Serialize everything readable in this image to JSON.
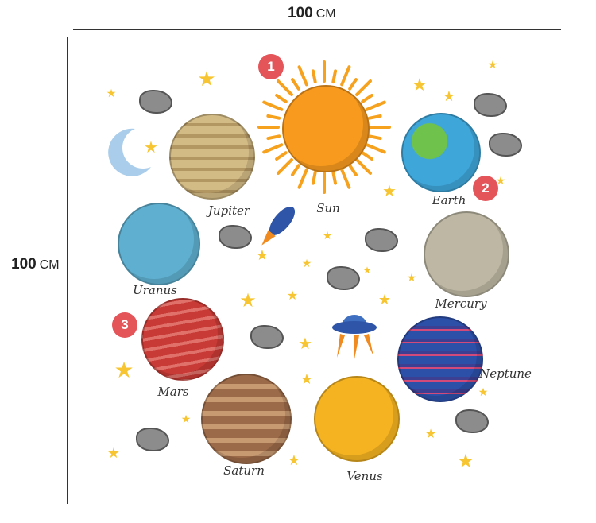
{
  "dimensions": {
    "width": {
      "value": "100",
      "unit": "CM"
    },
    "height": {
      "value": "100",
      "unit": "CM"
    }
  },
  "badges": [
    "1",
    "2",
    "3"
  ],
  "planets": [
    {
      "label": "Sun",
      "color": "#f79a1e"
    },
    {
      "label": "Earth",
      "color": "#3fa6d9"
    },
    {
      "label": "Jupiter",
      "color": "#c9b07a"
    },
    {
      "label": "Uranus",
      "color": "#5fb0d0"
    },
    {
      "label": "Mercury",
      "color": "#bdb7a3"
    },
    {
      "label": "Mars",
      "color": "#c83a35"
    },
    {
      "label": "Neptune",
      "color": "#2c4fa8"
    },
    {
      "label": "Saturn",
      "color": "#9b6a48"
    },
    {
      "label": "Venus",
      "color": "#f5b321"
    }
  ],
  "icons": [
    "moon-icon",
    "rocket-icon",
    "ufo-icon",
    "star-icon",
    "asteroid-icon"
  ]
}
